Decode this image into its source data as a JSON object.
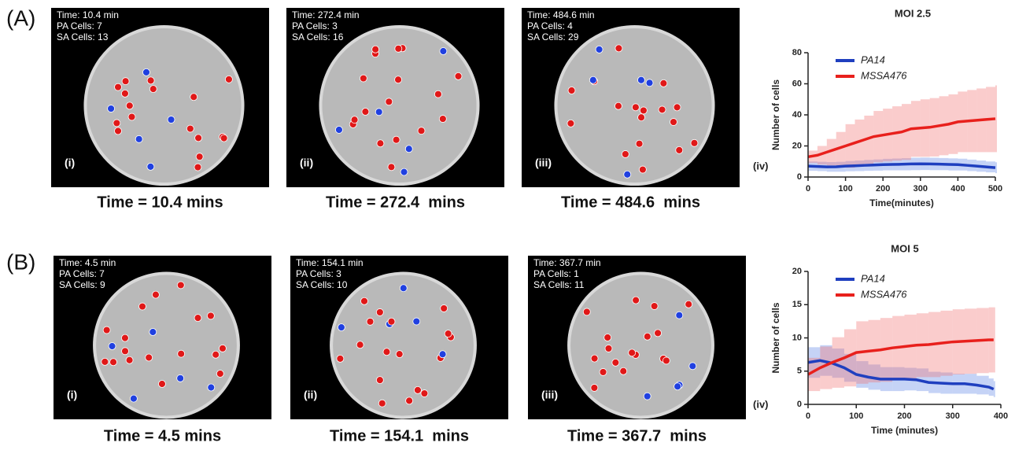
{
  "figure": {
    "rows": [
      {
        "label": "(A)",
        "panels": [
          {
            "info": [
              "Time: 10.4 min",
              "PA Cells: 7",
              "SA Cells: 13"
            ],
            "numeral": "(i)",
            "caption": "Time = 10.4 mins"
          },
          {
            "info": [
              "Time: 272.4 min",
              "PA Cells: 3",
              "SA Cells: 16"
            ],
            "numeral": "(ii)",
            "caption": "Time = 272.4  mins"
          },
          {
            "info": [
              "Time: 484.6 min",
              "PA Cells: 4",
              "SA Cells: 29"
            ],
            "numeral": "(iii)",
            "caption": "Time = 484.6  mins"
          }
        ]
      },
      {
        "label": "(B)",
        "panels": [
          {
            "info": [
              "Time: 4.5 min",
              "PA Cells: 7",
              "SA Cells: 9"
            ],
            "numeral": "(i)",
            "caption": "Time = 4.5 mins"
          },
          {
            "info": [
              "Time: 154.1 min",
              "PA Cells: 3",
              "SA Cells: 10"
            ],
            "numeral": "(ii)",
            "caption": "Time = 154.1  mins"
          },
          {
            "info": [
              "Time: 367.7 min",
              "PA Cells: 1",
              "SA Cells: 11"
            ],
            "numeral": "(iii)",
            "caption": "Time = 367.7  mins"
          }
        ]
      }
    ]
  },
  "chart_data": [
    {
      "type": "line",
      "title": "MOI 2.5",
      "panel_label": "(iv)",
      "x_label": "Time(minutes)",
      "y_label": "Number of cells",
      "legend": "upper left",
      "x": [
        0,
        25,
        50,
        75,
        100,
        125,
        150,
        175,
        200,
        225,
        250,
        275,
        300,
        325,
        350,
        375,
        400,
        425,
        450,
        475,
        500
      ],
      "xlim": [
        0,
        500
      ],
      "xticks": [
        0,
        100,
        200,
        300,
        400,
        500
      ],
      "ylim": [
        0,
        80
      ],
      "yticks": [
        0,
        20,
        40,
        60,
        80
      ],
      "series": [
        {
          "name": "PA14",
          "color": "#1f3fbf",
          "values": [
            7,
            6.8,
            6.5,
            6.6,
            7,
            7.2,
            7.5,
            7.7,
            8,
            8.1,
            8.2,
            8.4,
            8.5,
            8.4,
            8.3,
            8.1,
            8,
            7.5,
            7,
            6.5,
            6
          ],
          "errors": [
            3,
            3,
            3.1,
            3.2,
            3.3,
            3.4,
            3.5,
            3.6,
            3.7,
            3.8,
            3.9,
            4,
            4,
            4,
            3.9,
            3.9,
            3.8,
            3.7,
            3.6,
            3.5,
            3.5
          ]
        },
        {
          "name": "MSSA476",
          "color": "#e8201c",
          "values": [
            13,
            14,
            16,
            18,
            20,
            22,
            24,
            26,
            27,
            28,
            29,
            31,
            31.5,
            32,
            33,
            34,
            35.5,
            36,
            36.5,
            37,
            37.5
          ],
          "errors": [
            4,
            6,
            8.5,
            11,
            14,
            15,
            15.5,
            16.5,
            17,
            17.5,
            18,
            18,
            18.5,
            18.8,
            19,
            19.2,
            19.5,
            20,
            20.5,
            21,
            21.5
          ]
        }
      ]
    },
    {
      "type": "line",
      "title": "MOI 5",
      "panel_label": "(iv)",
      "x_label": "Time (minutes)",
      "y_label": "Number of cells",
      "legend": "upper left",
      "x": [
        0,
        25,
        50,
        75,
        100,
        125,
        150,
        175,
        200,
        225,
        250,
        275,
        300,
        325,
        350,
        375,
        385
      ],
      "xlim": [
        0,
        400
      ],
      "xticks": [
        0,
        100,
        200,
        300,
        400
      ],
      "ylim": [
        0,
        20
      ],
      "yticks": [
        0,
        5,
        10,
        15,
        20
      ],
      "series": [
        {
          "name": "PA14",
          "color": "#1f3fbf",
          "values": [
            6.3,
            6.6,
            6.2,
            5.5,
            4.5,
            4.1,
            3.8,
            3.8,
            3.8,
            3.7,
            3.3,
            3.2,
            3.1,
            3.1,
            2.9,
            2.6,
            2.3
          ],
          "errors": [
            2.3,
            2.3,
            2.2,
            2.1,
            2,
            1.9,
            1.8,
            1.8,
            1.7,
            1.7,
            1.6,
            1.6,
            1.5,
            1.5,
            1.4,
            1.3,
            1.2
          ]
        },
        {
          "name": "MSSA476",
          "color": "#e8201c",
          "values": [
            4.5,
            5.5,
            6.3,
            7,
            7.8,
            8,
            8.2,
            8.5,
            8.7,
            8.9,
            9,
            9.2,
            9.4,
            9.5,
            9.6,
            9.7,
            9.7
          ],
          "errors": [
            2.5,
            3.2,
            3.8,
            4.3,
            4.7,
            4.7,
            4.8,
            4.8,
            4.8,
            4.8,
            4.9,
            4.9,
            4.9,
            4.9,
            4.9,
            4.9,
            4.9
          ]
        }
      ]
    }
  ]
}
